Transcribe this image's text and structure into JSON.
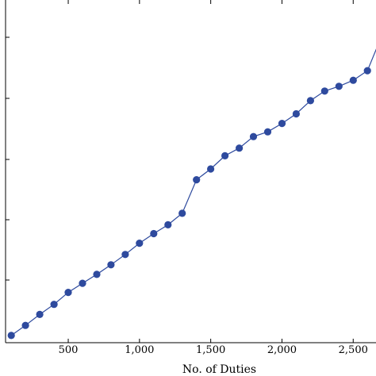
{
  "chart_data": {
    "type": "line",
    "title": "",
    "xlabel": "No. of Duties",
    "ylabel": "",
    "xlim": [
      60,
      2660
    ],
    "x_ticks": [
      500,
      1000,
      1500,
      2000,
      2500
    ],
    "x_tick_labels": [
      "500",
      "1,000",
      "1,500",
      "2,000",
      "2,500"
    ],
    "grid": false,
    "legend": "none",
    "colors": {
      "series": "#2e4a9e",
      "axis": "#000000"
    },
    "series": [
      {
        "x": [
          100,
          200,
          300,
          400,
          500,
          600,
          700,
          800,
          900,
          1000,
          1100,
          1200,
          1300,
          1400,
          1500,
          1600,
          1700,
          1800,
          1900,
          2000,
          2100,
          2200,
          2300,
          2400,
          2500,
          2600,
          2700
        ],
        "y": [
          0.3,
          0.72,
          1.18,
          1.6,
          2.1,
          2.48,
          2.85,
          3.25,
          3.68,
          4.15,
          4.55,
          4.92,
          5.4,
          6.8,
          7.25,
          7.8,
          8.12,
          8.6,
          8.8,
          9.15,
          9.55,
          10.1,
          10.5,
          10.7,
          10.95,
          11.35,
          12.8
        ]
      }
    ]
  }
}
